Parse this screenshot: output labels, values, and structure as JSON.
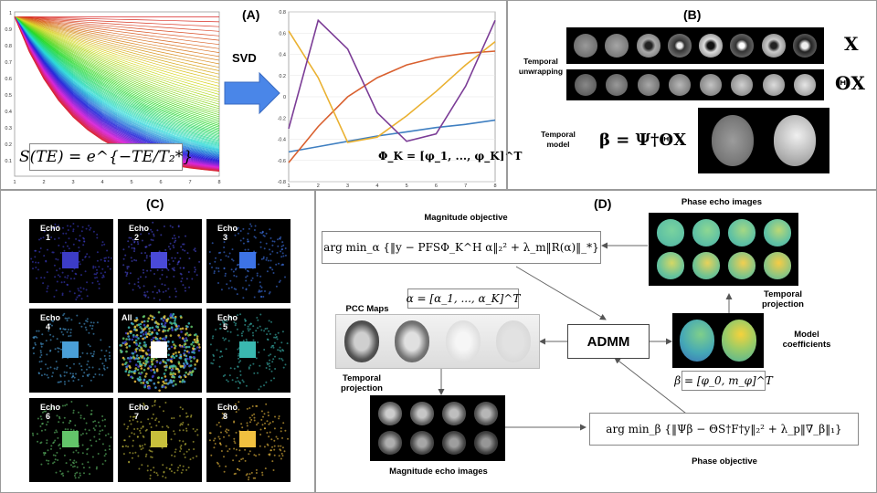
{
  "panel_a": {
    "label": "(A)",
    "arrow_label": "SVD",
    "formula_left": "S(TE) = e^{−TE/T₂*}",
    "formula_right": "Φ_K = [φ_1, ..., φ_K]^T",
    "left_plot": {
      "x_ticks": [
        "1",
        "2",
        "3",
        "4",
        "5",
        "6",
        "7",
        "8"
      ],
      "y_ticks": [
        "0.1",
        "0.2",
        "0.3",
        "0.4",
        "0.5",
        "0.6",
        "0.7",
        "0.8",
        "0.9",
        "1"
      ]
    },
    "right_plot": {
      "x_ticks": [
        "1",
        "2",
        "3",
        "4",
        "5",
        "6",
        "7",
        "8"
      ],
      "y_ticks": [
        "-0.8",
        "-0.6",
        "-0.4",
        "-0.2",
        "0",
        "0.2",
        "0.4",
        "0.6",
        "0.8"
      ],
      "series": [
        {
          "color": "#3f7fc1",
          "values": [
            -0.52,
            -0.47,
            -0.42,
            -0.37,
            -0.33,
            -0.29,
            -0.26,
            -0.22
          ]
        },
        {
          "color": "#d9602f",
          "values": [
            -0.62,
            -0.28,
            0.0,
            0.18,
            0.3,
            0.37,
            0.41,
            0.43
          ]
        },
        {
          "color": "#eab131",
          "values": [
            0.62,
            0.18,
            -0.43,
            -0.38,
            -0.18,
            0.05,
            0.3,
            0.52
          ]
        },
        {
          "color": "#7b3c96",
          "values": [
            -0.3,
            0.72,
            0.45,
            -0.15,
            -0.42,
            -0.35,
            0.1,
            0.72
          ]
        }
      ]
    }
  },
  "panel_b": {
    "label": "(B)",
    "row1_label": "Temporal unwrapping",
    "symbol_x": "X",
    "symbol_theta_x": "ΘX",
    "row2_label": "Temporal model",
    "model_formula": "β = Ψ†ΘX"
  },
  "panel_c": {
    "label": "(C)",
    "cells": [
      {
        "title": "Echo",
        "num": "1",
        "color": "#3c3cc8"
      },
      {
        "title": "Echo",
        "num": "2",
        "color": "#4a4ad8"
      },
      {
        "title": "Echo",
        "num": "3",
        "color": "#3d73e6"
      },
      {
        "title": "Echo",
        "num": "4",
        "color": "#4a9fd8"
      },
      {
        "title": "All",
        "num": "",
        "color": "#ffffff"
      },
      {
        "title": "Echo",
        "num": "5",
        "color": "#3ab8b0"
      },
      {
        "title": "Echo",
        "num": "6",
        "color": "#63c46a"
      },
      {
        "title": "Echo",
        "num": "7",
        "color": "#c8c03c"
      },
      {
        "title": "Echo",
        "num": "8",
        "color": "#f0c040"
      }
    ]
  },
  "panel_d": {
    "label": "(D)",
    "magnitude_objective_label": "Magnitude objective",
    "magnitude_objective": "arg min_α {‖y − PFSΦ_K^H α‖₂² + λ_m‖R(α)‖_*}",
    "alpha_def": "α = [α_1, ..., α_K]^T",
    "pcc_label": "PCC Maps",
    "admm_label": "ADMM",
    "temporal_projection_left": "Temporal projection",
    "magnitude_echo_label": "Magnitude echo images",
    "phase_objective": "arg min_β {‖Ψβ − ΘS†F†y‖₂² + λ_p‖∇_β‖₁}",
    "phase_objective_label": "Phase objective",
    "phase_echo_label": "Phase echo images",
    "temporal_projection_right": "Temporal projection",
    "model_coefficients_label": "Model coefficients",
    "beta_def": "β = [φ_0, m_φ]^T"
  }
}
